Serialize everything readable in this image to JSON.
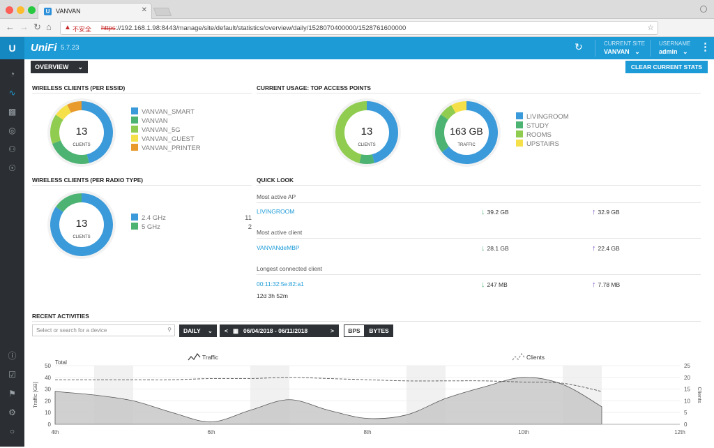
{
  "browser": {
    "tab_title": "VANVAN",
    "tab_close": "✕",
    "insecure_label": "不安全",
    "url_protocol": "https",
    "url_rest": "://192.168.1.98:8443/manage/site/default/statistics/overview/daily/1528070400000/1528761600000"
  },
  "header": {
    "brand": "UniFi",
    "version": "5.7.23",
    "current_site_label": "CURRENT SITE",
    "current_site_value": "VANVAN",
    "username_label": "USERNAME",
    "username_value": "admin"
  },
  "toolbar": {
    "overview_label": "OVERVIEW",
    "clear_label": "CLEAR CURRENT STATS"
  },
  "essid": {
    "title": "WIRELESS CLIENTS (PER ESSID)",
    "count": "13",
    "count_label": "CLIENTS",
    "items": [
      {
        "label": "VANVAN_SMART",
        "color": "#3b9ad9",
        "value": 6
      },
      {
        "label": "VANVAN",
        "color": "#4db373",
        "value": 3
      },
      {
        "label": "VANVAN_5G",
        "color": "#8fcc4f",
        "value": 2
      },
      {
        "label": "VANVAN_GUEST",
        "color": "#f5e04a",
        "value": 1
      },
      {
        "label": "VANVAN_PRINTER",
        "color": "#e89a2c",
        "value": 1
      }
    ]
  },
  "top_ap": {
    "title": "CURRENT USAGE: TOP ACCESS POINTS",
    "clients_count": "13",
    "clients_label": "CLIENTS",
    "traffic_value": "163 GB",
    "traffic_label": "TRAFFIC",
    "legend": [
      {
        "label": "LIVINGROOM",
        "color": "#3b9ad9"
      },
      {
        "label": "STUDY",
        "color": "#4db373"
      },
      {
        "label": "ROOMS",
        "color": "#8fcc4f"
      },
      {
        "label": "UPSTAIRS",
        "color": "#f5e04a"
      }
    ],
    "clients_split": [
      6,
      1,
      6,
      0
    ],
    "traffic_split": [
      72,
      23,
      8,
      9
    ]
  },
  "radio": {
    "title": "WIRELESS CLIENTS (PER RADIO TYPE)",
    "count": "13",
    "count_label": "CLIENTS",
    "items": [
      {
        "label": "2.4 GHz",
        "value": "11",
        "color": "#3b9ad9"
      },
      {
        "label": "5 GHz",
        "value": "2",
        "color": "#4db373"
      }
    ]
  },
  "quick_look": {
    "title": "QUICK LOOK",
    "ap_label": "Most active AP",
    "ap_name": "LIVINGROOM",
    "ap_down": "39.2 GB",
    "ap_up": "32.9 GB",
    "client_label": "Most active client",
    "client_name": "VANVANdeMBP",
    "client_down": "28.1 GB",
    "client_up": "22.4 GB",
    "longest_label": "Longest connected client",
    "longest_name": "00:11:32:5e:82:a1",
    "longest_down": "247 MB",
    "longest_up": "7.78 MB",
    "longest_duration": "12d 3h 52m"
  },
  "activities": {
    "title": "RECENT ACTIVITIES",
    "search_placeholder": "Select or search for a device",
    "period": "DAILY",
    "prev": "<",
    "next": ">",
    "date_range": "06/04/2018 - 06/11/2018",
    "bps_label": "BPS",
    "bytes_label": "BYTES"
  },
  "chart_data": {
    "type": "area",
    "title": "Total",
    "legend": [
      "Traffic",
      "Clients"
    ],
    "ylabel": "Traffic [GB]",
    "y2label": "Clients",
    "ylim": [
      0,
      50
    ],
    "y2lim": [
      0,
      25
    ],
    "yticks": [
      "0",
      "10",
      "20",
      "30",
      "40",
      "50"
    ],
    "y2ticks": [
      "0",
      "5",
      "10",
      "15",
      "20",
      "25"
    ],
    "xticks": [
      "4th",
      "6th",
      "8th",
      "10th",
      "12th"
    ],
    "x": [
      4.0,
      4.5,
      5.0,
      5.5,
      6.0,
      6.5,
      7.0,
      7.5,
      8.0,
      8.5,
      9.0,
      9.5,
      10.0,
      10.5,
      11.0
    ],
    "traffic": [
      28,
      25,
      20,
      10,
      2,
      12,
      21,
      12,
      5,
      8,
      22,
      32,
      40,
      34,
      15
    ],
    "clients": [
      19,
      19,
      19,
      19,
      19.5,
      19.5,
      20,
      19.5,
      19,
      18.5,
      18.5,
      18.5,
      18,
      17.5,
      14
    ]
  }
}
